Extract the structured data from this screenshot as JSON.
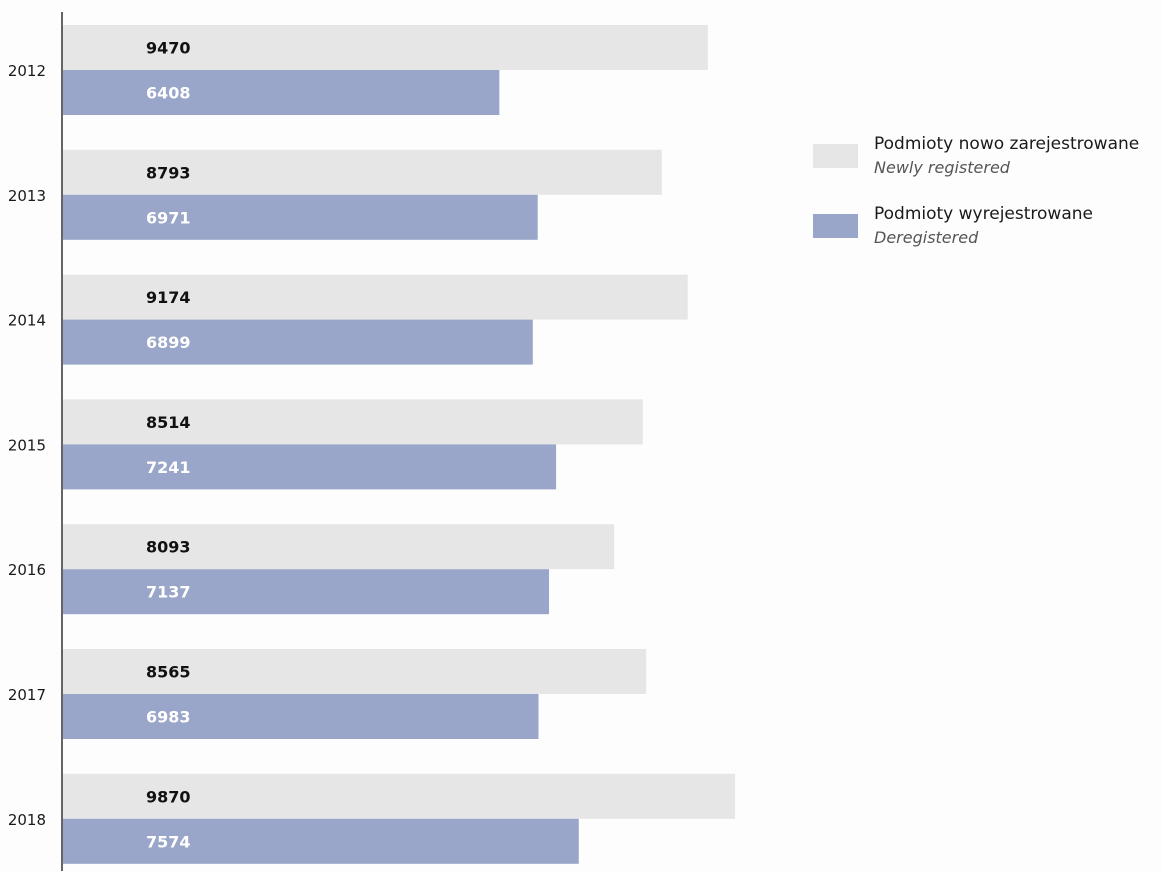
{
  "chart_data": {
    "type": "bar",
    "orientation": "horizontal",
    "categories": [
      "2012",
      "2013",
      "2014",
      "2015",
      "2016",
      "2017",
      "2018"
    ],
    "series": [
      {
        "name": "Podmioty nowo zarejestrowane",
        "name_en": "Newly registered",
        "color": "#e6e6e6",
        "label_color": "#111111",
        "values": [
          9470,
          8793,
          9174,
          8514,
          8093,
          8565,
          9870
        ]
      },
      {
        "name": "Podmioty wyrejestrowane",
        "name_en": "Deregistered",
        "color": "#9aa6c9",
        "label_color": "#ffffff",
        "values": [
          6408,
          6971,
          6899,
          7241,
          7137,
          6983,
          7574
        ]
      }
    ],
    "xlim": [
      0,
      15000
    ],
    "grid": false,
    "data_labels": true,
    "legend_position": "top-right"
  }
}
